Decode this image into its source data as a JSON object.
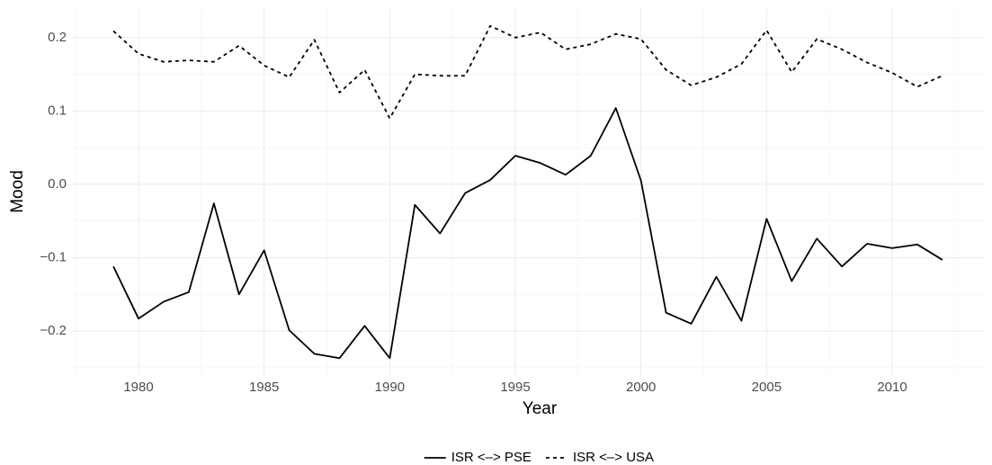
{
  "chart_data": {
    "type": "line",
    "x_label": "Year",
    "y_label": "Mood",
    "x": [
      1979,
      1980,
      1981,
      1982,
      1983,
      1984,
      1985,
      1986,
      1987,
      1988,
      1989,
      1990,
      1991,
      1992,
      1993,
      1994,
      1995,
      1996,
      1997,
      1998,
      1999,
      2000,
      2001,
      2002,
      2003,
      2004,
      2005,
      2006,
      2007,
      2008,
      2009,
      2010,
      2011,
      2012
    ],
    "series": [
      {
        "name": "ISR <–> PSE",
        "color": "#000000",
        "dash": "solid",
        "values": [
          -0.112,
          -0.183,
          -0.16,
          -0.147,
          -0.026,
          -0.15,
          -0.09,
          -0.199,
          -0.231,
          -0.237,
          -0.193,
          -0.237,
          -0.028,
          -0.067,
          -0.012,
          0.006,
          0.039,
          0.029,
          0.013,
          0.039,
          0.104,
          0.005,
          -0.175,
          -0.19,
          -0.126,
          -0.186,
          -0.047,
          -0.132,
          -0.074,
          -0.112,
          -0.081,
          -0.087,
          -0.082,
          -0.103
        ]
      },
      {
        "name": "ISR <–> USA",
        "color": "#000000",
        "dash": "dashed",
        "values": [
          0.209,
          0.178,
          0.167,
          0.169,
          0.167,
          0.189,
          0.162,
          0.146,
          0.197,
          0.125,
          0.156,
          0.09,
          0.15,
          0.148,
          0.148,
          0.216,
          0.2,
          0.207,
          0.184,
          0.191,
          0.205,
          0.198,
          0.156,
          0.135,
          0.146,
          0.164,
          0.21,
          0.153,
          0.198,
          0.184,
          0.166,
          0.152,
          0.133,
          0.148
        ]
      }
    ],
    "xlim": [
      1977.35,
      2013.65
    ],
    "xticks": [
      1980,
      1985,
      1990,
      1995,
      2000,
      2005,
      2010
    ],
    "ylim": [
      -0.26,
      0.239
    ],
    "yticks": [
      {
        "value": -0.2,
        "label": "−0.2"
      },
      {
        "value": -0.1,
        "label": "−0.1"
      },
      {
        "value": 0,
        "label": "0.0"
      },
      0.1,
      0.2
    ],
    "grid": true,
    "legend": "bottom"
  }
}
